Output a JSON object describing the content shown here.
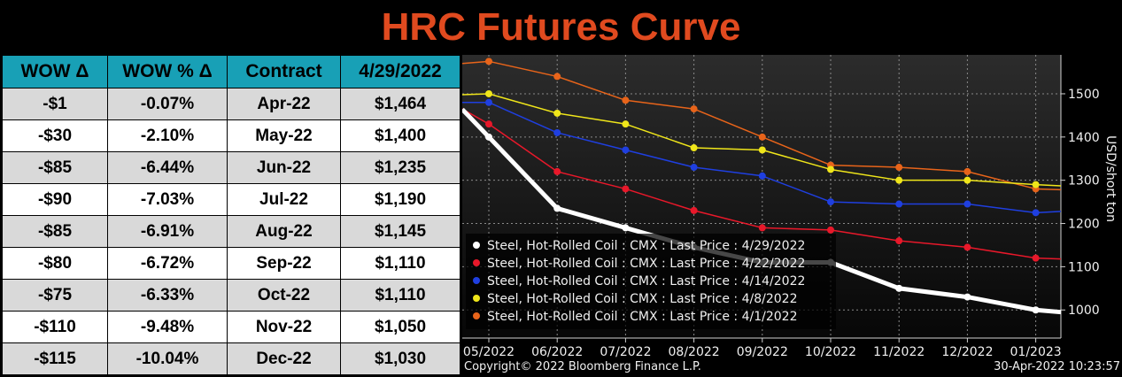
{
  "title": "HRC Futures Curve",
  "table": {
    "headers": [
      "WOW Δ",
      "WOW % Δ",
      "Contract",
      "4/29/2022"
    ],
    "rows": [
      [
        "-$1",
        "-0.07%",
        "Apr-22",
        "$1,464"
      ],
      [
        "-$30",
        "-2.10%",
        "May-22",
        "$1,400"
      ],
      [
        "-$85",
        "-6.44%",
        "Jun-22",
        "$1,235"
      ],
      [
        "-$90",
        "-7.03%",
        "Jul-22",
        "$1,190"
      ],
      [
        "-$85",
        "-6.91%",
        "Aug-22",
        "$1,145"
      ],
      [
        "-$80",
        "-6.72%",
        "Sep-22",
        "$1,110"
      ],
      [
        "-$75",
        "-6.33%",
        "Oct-22",
        "$1,110"
      ],
      [
        "-$110",
        "-9.48%",
        "Nov-22",
        "$1,050"
      ],
      [
        "-$115",
        "-10.04%",
        "Dec-22",
        "$1,030"
      ]
    ]
  },
  "chart_data": {
    "type": "line",
    "categories": [
      "05/2022",
      "06/2022",
      "07/2022",
      "08/2022",
      "09/2022",
      "10/2022",
      "11/2022",
      "12/2022",
      "01/2023"
    ],
    "ylabel": "USD/short ton",
    "yticks": [
      1000,
      1100,
      1200,
      1300,
      1400,
      1500
    ],
    "ylim": [
      935,
      1590
    ],
    "grid": true,
    "legend_position": "bottom-left",
    "footer_left": "Copyright© 2022 Bloomberg Finance L.P.",
    "footer_right": "30-Apr-2022 10:23:57",
    "series": [
      {
        "name": "Steel, Hot-Rolled Coil : CMX : Last Price : 4/29/2022",
        "color": "#ffffff",
        "values": [
          1400,
          1235,
          1190,
          1145,
          1110,
          1110,
          1050,
          1030,
          1000
        ],
        "start": 1464,
        "end": 995,
        "width": 5
      },
      {
        "name": "Steel, Hot-Rolled Coil : CMX : Last Price : 4/22/2022",
        "color": "#e8182a",
        "values": [
          1430,
          1320,
          1280,
          1230,
          1190,
          1185,
          1160,
          1145,
          1120
        ],
        "start": 1465,
        "end": 1118,
        "width": 1.5
      },
      {
        "name": "Steel, Hot-Rolled Coil : CMX : Last Price : 4/14/2022",
        "color": "#1f3fe0",
        "values": [
          1480,
          1410,
          1370,
          1330,
          1310,
          1250,
          1245,
          1245,
          1225
        ],
        "start": 1480,
        "end": 1228,
        "width": 1.5
      },
      {
        "name": "Steel, Hot-Rolled Coil : CMX : Last Price : 4/8/2022",
        "color": "#f0e61a",
        "values": [
          1500,
          1455,
          1430,
          1375,
          1370,
          1325,
          1300,
          1300,
          1290
        ],
        "start": 1498,
        "end": 1287,
        "width": 1.5
      },
      {
        "name": "Steel, Hot-Rolled Coil : CMX : Last Price : 4/1/2022",
        "color": "#e8641a",
        "values": [
          1575,
          1540,
          1485,
          1465,
          1400,
          1335,
          1330,
          1320,
          1280
        ],
        "start": 1570,
        "end": 1278,
        "width": 1.5
      }
    ]
  }
}
